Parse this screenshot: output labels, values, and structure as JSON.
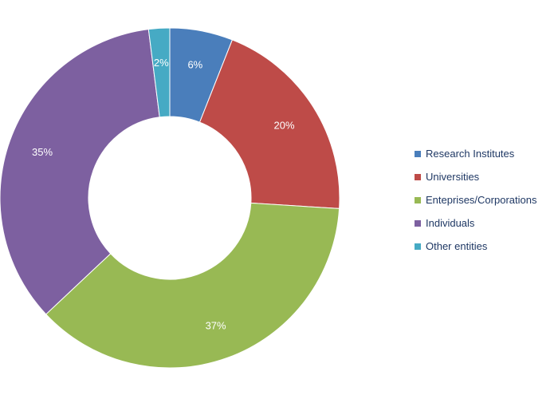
{
  "chart_data": {
    "type": "pie",
    "variant": "donut",
    "title": "",
    "legend_position": "right",
    "labels_format": "percent",
    "categories": [
      "Research Institutes",
      "Universities",
      "Enteprises/Corporations",
      "Individuals",
      "Other entities"
    ],
    "values": [
      6,
      20,
      37,
      35,
      2
    ],
    "labels": [
      "6%",
      "20%",
      "37%",
      "35%",
      "2%"
    ],
    "colors": [
      "#4a7ebb",
      "#be4b48",
      "#98b954",
      "#7d60a0",
      "#46aac4"
    ]
  }
}
